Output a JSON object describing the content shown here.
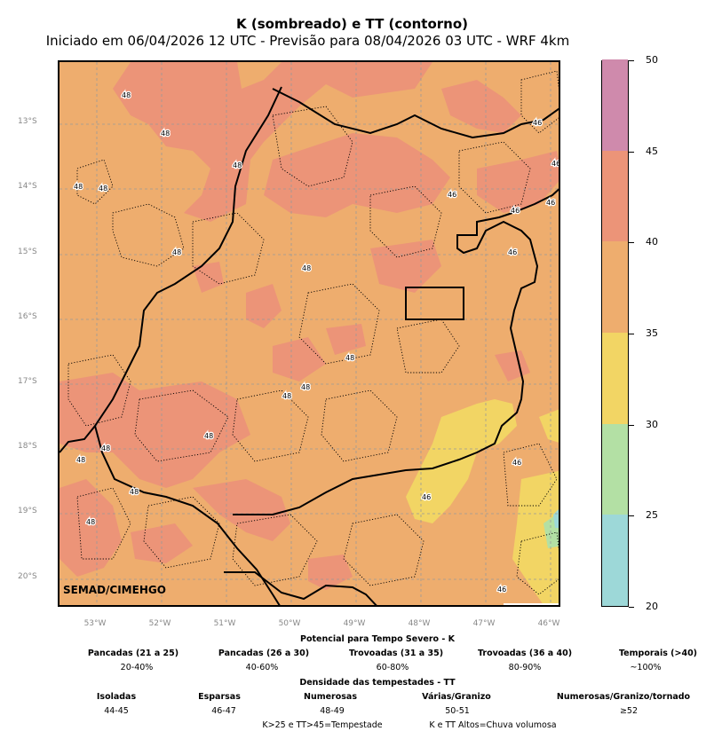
{
  "title": "K (sombreado) e TT (contorno)",
  "subtitle": "Iniciado em 06/04/2026 12 UTC - Previsão para 08/04/2026 03 UTC - WRF 4km",
  "watermark": "SEMAD/CIMEHGO",
  "map": {
    "lat_labels": [
      "13°S",
      "14°S",
      "15°S",
      "16°S",
      "17°S",
      "18°S",
      "19°S",
      "20°S"
    ],
    "lon_labels": [
      "53°W",
      "52°W",
      "51°W",
      "50°W",
      "49°W",
      "48°W",
      "47°W",
      "46°W"
    ],
    "lon_range": [
      -53.6,
      -45.8
    ],
    "lat_range": [
      -20.45,
      -12.15
    ],
    "contour_labels": [
      "48",
      "48",
      "48",
      "48",
      "48",
      "48",
      "48",
      "48",
      "48",
      "48",
      "48",
      "48",
      "48",
      "48",
      "48",
      "46",
      "46",
      "46",
      "46",
      "46",
      "46",
      "46",
      "46",
      "46"
    ]
  },
  "colorbar": {
    "ticks": [
      "20",
      "25",
      "30",
      "35",
      "40",
      "45",
      "50"
    ],
    "colors": [
      "#9dd8d8",
      "#b3e0a4",
      "#f2d564",
      "#eead6e",
      "#ec9478",
      "#cf8aac"
    ]
  },
  "legend": {
    "k_title": "Potencial para Tempo Severo - K",
    "k_items": [
      {
        "name": "Pancadas (21 a 25)",
        "value": "20-40%"
      },
      {
        "name": "Pancadas (26 a 30)",
        "value": "40-60%"
      },
      {
        "name": "Trovoadas (31 a 35)",
        "value": "60-80%"
      },
      {
        "name": "Trovoadas (36 a 40)",
        "value": "80-90%"
      },
      {
        "name": "Temporais (>40)",
        "value": "~100%"
      }
    ],
    "tt_title": "Densidade das tempestades - TT",
    "tt_items": [
      {
        "name": "Isoladas",
        "value": "44-45"
      },
      {
        "name": "Esparsas",
        "value": "46-47"
      },
      {
        "name": "Numerosas",
        "value": "48-49"
      },
      {
        "name": "Várias/Granizo",
        "value": "50-51"
      },
      {
        "name": "Numerosas/Granizo/tornado",
        "value": "≥52"
      }
    ],
    "note_left": "K>25 e TT>45=Tempestade",
    "note_right": "K e TT Altos=Chuva volumosa"
  }
}
